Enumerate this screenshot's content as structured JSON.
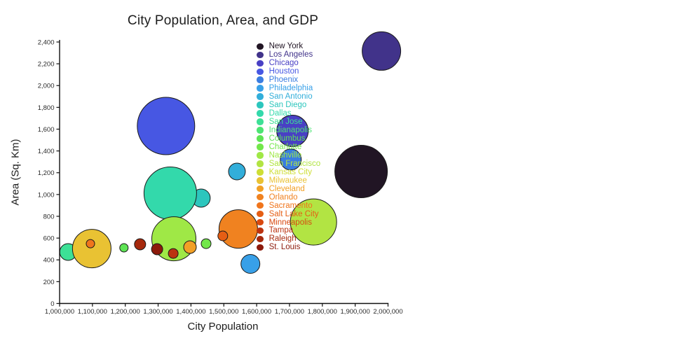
{
  "chart_data": {
    "type": "scatter",
    "variant": "bubble",
    "title": "City Population, Area, and GDP",
    "xlabel": "City Population",
    "ylabel": "Area (Sq. Km)",
    "xlim": [
      1000000,
      2000000
    ],
    "ylim": [
      0,
      2400
    ],
    "grid": false,
    "legend_position": "inside-plot upper-right column",
    "size_encodes": "GDP (bubble size)",
    "x_ticks": [
      {
        "value": 1000000,
        "label": "1,000,000"
      },
      {
        "value": 1100000,
        "label": "1,100,000"
      },
      {
        "value": 1200000,
        "label": "1,200,000"
      },
      {
        "value": 1300000,
        "label": "1,300,000"
      },
      {
        "value": 1400000,
        "label": "1,400,000"
      },
      {
        "value": 1500000,
        "label": "1,500,000"
      },
      {
        "value": 1600000,
        "label": "1,600,000"
      },
      {
        "value": 1700000,
        "label": "1,700,000"
      },
      {
        "value": 1800000,
        "label": "1,800,000"
      },
      {
        "value": 1900000,
        "label": "1,900,000"
      },
      {
        "value": 2000000,
        "label": "2,000,000"
      }
    ],
    "y_ticks": [
      {
        "value": 0,
        "label": "0"
      },
      {
        "value": 200,
        "label": "200"
      },
      {
        "value": 400,
        "label": "400"
      },
      {
        "value": 600,
        "label": "600"
      },
      {
        "value": 800,
        "label": "800"
      },
      {
        "value": 1000,
        "label": "1,000"
      },
      {
        "value": 1200,
        "label": "1,200"
      },
      {
        "value": 1400,
        "label": "1,400"
      },
      {
        "value": 1600,
        "label": "1,600"
      },
      {
        "value": 1800,
        "label": "1,800"
      },
      {
        "value": 2000,
        "label": "2,000"
      },
      {
        "value": 2200,
        "label": "2,200"
      },
      {
        "value": 2400,
        "label": "2,400"
      }
    ],
    "legend": [
      {
        "name": "New York",
        "color": "#211524"
      },
      {
        "name": "Los Angeles",
        "color": "#41338a"
      },
      {
        "name": "Chicago",
        "color": "#4940c4"
      },
      {
        "name": "Houston",
        "color": "#4757e3"
      },
      {
        "name": "Phoenix",
        "color": "#3b7de0"
      },
      {
        "name": "Philadelphia",
        "color": "#38a0e8"
      },
      {
        "name": "San Antonio",
        "color": "#32aeda"
      },
      {
        "name": "San Diego",
        "color": "#2cc6bd"
      },
      {
        "name": "Dallas",
        "color": "#33d9ab"
      },
      {
        "name": "San Jose",
        "color": "#3de096"
      },
      {
        "name": "Indianapolis",
        "color": "#4ce473"
      },
      {
        "name": "Columbus",
        "color": "#5ee455"
      },
      {
        "name": "Charlotte",
        "color": "#72e74a"
      },
      {
        "name": "Nashville",
        "color": "#9fe846"
      },
      {
        "name": "San Francisco",
        "color": "#b2e443"
      },
      {
        "name": "Kansas City",
        "color": "#cede35"
      },
      {
        "name": "Milwaukee",
        "color": "#e9c233"
      },
      {
        "name": "Cleveland",
        "color": "#f2a026"
      },
      {
        "name": "Orlando",
        "color": "#f08220"
      },
      {
        "name": "Sacramento",
        "color": "#f0751c"
      },
      {
        "name": "Salt Lake City",
        "color": "#e55e14"
      },
      {
        "name": "Minneapolis",
        "color": "#d84910"
      },
      {
        "name": "Tampa",
        "color": "#bb3310"
      },
      {
        "name": "Raleigh",
        "color": "#a6290d"
      },
      {
        "name": "St. Louis",
        "color": "#8c1a0b"
      }
    ],
    "points_note": "visible bubbles only, listed in draw order (first = bottom layer); population and area estimated from axes, radius_px is rendered bubble radius",
    "points": [
      {
        "city": "San Diego",
        "population": 1431000,
        "area": 967,
        "radius_px": 13,
        "color": "#2cc6bd"
      },
      {
        "city": "Phoenix",
        "population": 1704000,
        "area": 1321,
        "radius_px": 15,
        "color": "#3b7de0"
      },
      {
        "city": "San Jose",
        "population": 1026000,
        "area": 472,
        "radius_px": 12,
        "color": "#3de096"
      },
      {
        "city": "Houston",
        "population": 1324000,
        "area": 1629,
        "radius_px": 41,
        "color": "#4757e3"
      },
      {
        "city": "Dallas",
        "population": 1337000,
        "area": 1012,
        "radius_px": 37.5,
        "color": "#33d9ab"
      },
      {
        "city": "Chicago",
        "population": 1709000,
        "area": 1584,
        "radius_px": 22.5,
        "color": "#4940c4"
      },
      {
        "city": "Los Angeles",
        "population": 1980000,
        "area": 2317,
        "radius_px": 27.5,
        "color": "#41338a"
      },
      {
        "city": "New York",
        "population": 1918000,
        "area": 1211,
        "radius_px": 37.5,
        "color": "#211524"
      },
      {
        "city": "Milwaukee",
        "population": 1098000,
        "area": 504,
        "radius_px": 27.5,
        "color": "#e9c233"
      },
      {
        "city": "Nashville",
        "population": 1348000,
        "area": 594,
        "radius_px": 31.5,
        "color": "#9fe846"
      },
      {
        "city": "Orlando",
        "population": 1544000,
        "area": 684,
        "radius_px": 27.5,
        "color": "#f08220"
      },
      {
        "city": "San Francisco",
        "population": 1773000,
        "area": 748,
        "radius_px": 33,
        "color": "#b2e443"
      },
      {
        "city": "Philadelphia",
        "population": 1581000,
        "area": 363,
        "radius_px": 13.5,
        "color": "#38a0e8"
      },
      {
        "city": "San Antonio",
        "population": 1540000,
        "area": 1211,
        "radius_px": 12,
        "color": "#32aeda"
      },
      {
        "city": "Columbus",
        "population": 1196000,
        "area": 511,
        "radius_px": 6,
        "color": "#5ee455"
      },
      {
        "city": "Charlotte",
        "population": 1446000,
        "area": 549,
        "radius_px": 7,
        "color": "#72e74a"
      },
      {
        "city": "Sacramento",
        "population": 1094000,
        "area": 549,
        "radius_px": 6,
        "color": "#f0751c"
      },
      {
        "city": "Cleveland",
        "population": 1397000,
        "area": 517,
        "radius_px": 9,
        "color": "#f2a026"
      },
      {
        "city": "Salt Lake City",
        "population": 1497000,
        "area": 620,
        "radius_px": 7,
        "color": "#e55e14"
      },
      {
        "city": "Raleigh",
        "population": 1245000,
        "area": 543,
        "radius_px": 8,
        "color": "#a6290d"
      },
      {
        "city": "St. Louis",
        "population": 1297000,
        "area": 498,
        "radius_px": 8,
        "color": "#8c1a0b"
      },
      {
        "city": "Tampa",
        "population": 1346000,
        "area": 459,
        "radius_px": 7,
        "color": "#bb3310"
      }
    ]
  }
}
